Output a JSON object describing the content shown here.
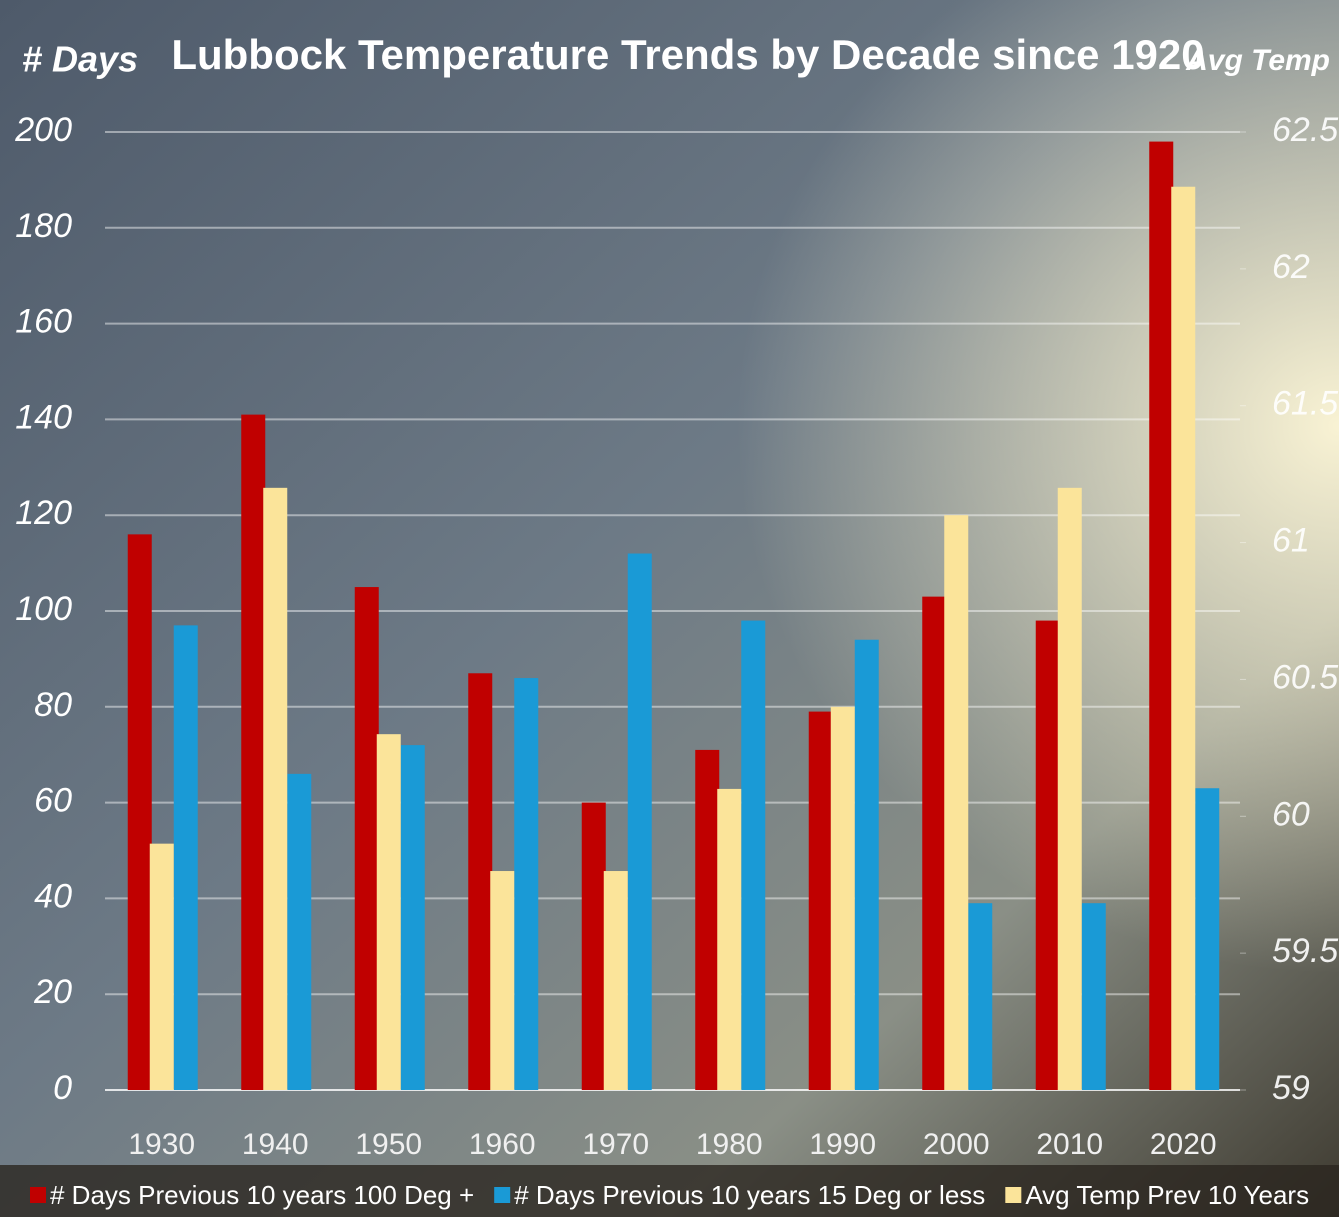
{
  "chart_data": {
    "type": "bar",
    "title": "Lubbock Temperature Trends by Decade since 1920",
    "y_label": "# Days",
    "y2_label": "Avg Temp",
    "categories": [
      "1930",
      "1940",
      "1950",
      "1960",
      "1970",
      "1980",
      "1990",
      "2000",
      "2010",
      "2020"
    ],
    "series": [
      {
        "name": "# Days Previous 10 years 100 Deg +",
        "color": "#c00000",
        "values": [
          116,
          141,
          105,
          87,
          60,
          71,
          79,
          103,
          98,
          198
        ]
      },
      {
        "name": "# Days Previous 10 years 15 Deg or less",
        "color": "#1a9ad6",
        "values": [
          97,
          66,
          72,
          86,
          112,
          98,
          94,
          39,
          39,
          63
        ]
      },
      {
        "name": "Avg Temp Prev 10 Years",
        "color": "#fbe49a",
        "axis": "y2",
        "values": [
          59.9,
          61.2,
          60.3,
          59.8,
          59.8,
          60.1,
          60.4,
          61.1,
          61.2,
          62.3
        ]
      }
    ],
    "ylim": [
      0,
      200
    ],
    "yticks": [
      0,
      20,
      40,
      60,
      80,
      100,
      120,
      140,
      160,
      180,
      200
    ],
    "y2lim": [
      59,
      62.5
    ],
    "y2ticks": [
      59,
      59.5,
      60,
      60.5,
      61,
      61.5,
      62,
      62.5
    ],
    "grid": true,
    "legend": "bottom"
  }
}
